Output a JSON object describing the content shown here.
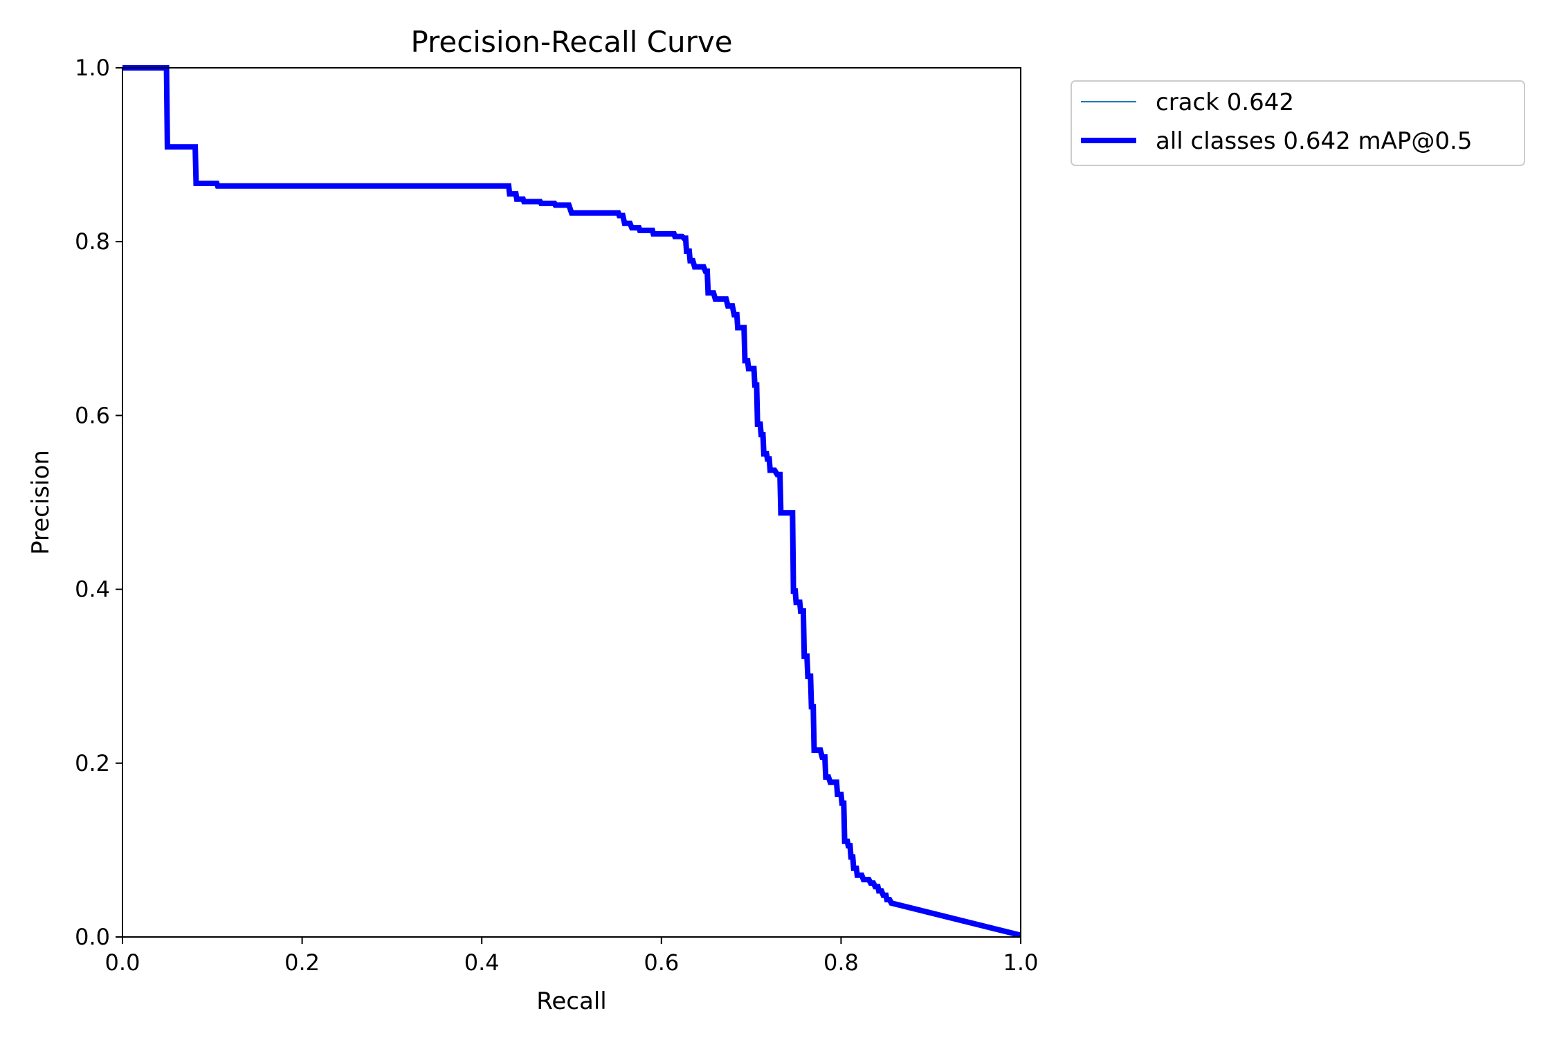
{
  "chart_data": {
    "type": "line",
    "title": "Precision-Recall Curve",
    "xlabel": "Recall",
    "ylabel": "Precision",
    "xlim": [
      0,
      1
    ],
    "ylim": [
      0,
      1
    ],
    "xticks": [
      "0.0",
      "0.2",
      "0.4",
      "0.6",
      "0.8",
      "1.0"
    ],
    "yticks": [
      "0.0",
      "0.2",
      "0.4",
      "0.6",
      "0.8",
      "1.0"
    ],
    "grid": false,
    "legend": {
      "placement": "outside-top-right",
      "entries": [
        {
          "label": "crack 0.642",
          "color": "#1f77b4",
          "style": "thin"
        },
        {
          "label": "all classes 0.642 mAP@0.5",
          "color": "#0000ff",
          "style": "thick"
        }
      ]
    },
    "series": [
      {
        "name": "all classes 0.642 mAP@0.5",
        "color": "#0000ff",
        "points": [
          [
            0.0,
            1.0
          ],
          [
            0.049,
            1.0
          ],
          [
            0.05,
            0.909
          ],
          [
            0.081,
            0.909
          ],
          [
            0.082,
            0.867
          ],
          [
            0.105,
            0.867
          ],
          [
            0.106,
            0.864
          ],
          [
            0.43,
            0.864
          ],
          [
            0.431,
            0.855
          ],
          [
            0.438,
            0.855
          ],
          [
            0.439,
            0.849
          ],
          [
            0.446,
            0.849
          ],
          [
            0.447,
            0.846
          ],
          [
            0.465,
            0.846
          ],
          [
            0.466,
            0.844
          ],
          [
            0.481,
            0.844
          ],
          [
            0.482,
            0.842
          ],
          [
            0.497,
            0.842
          ],
          [
            0.5,
            0.833
          ],
          [
            0.552,
            0.833
          ],
          [
            0.553,
            0.83
          ],
          [
            0.557,
            0.83
          ],
          [
            0.559,
            0.821
          ],
          [
            0.565,
            0.821
          ],
          [
            0.567,
            0.816
          ],
          [
            0.575,
            0.816
          ],
          [
            0.576,
            0.813
          ],
          [
            0.59,
            0.813
          ],
          [
            0.591,
            0.809
          ],
          [
            0.614,
            0.809
          ],
          [
            0.615,
            0.806
          ],
          [
            0.623,
            0.806
          ],
          [
            0.625,
            0.804
          ],
          [
            0.627,
            0.804
          ],
          [
            0.628,
            0.789
          ],
          [
            0.631,
            0.789
          ],
          [
            0.632,
            0.778
          ],
          [
            0.635,
            0.778
          ],
          [
            0.637,
            0.771
          ],
          [
            0.647,
            0.771
          ],
          [
            0.649,
            0.766
          ],
          [
            0.651,
            0.766
          ],
          [
            0.652,
            0.741
          ],
          [
            0.658,
            0.741
          ],
          [
            0.66,
            0.734
          ],
          [
            0.672,
            0.734
          ],
          [
            0.674,
            0.726
          ],
          [
            0.679,
            0.726
          ],
          [
            0.681,
            0.716
          ],
          [
            0.684,
            0.716
          ],
          [
            0.685,
            0.701
          ],
          [
            0.692,
            0.701
          ],
          [
            0.693,
            0.663
          ],
          [
            0.696,
            0.663
          ],
          [
            0.697,
            0.654
          ],
          [
            0.703,
            0.654
          ],
          [
            0.704,
            0.635
          ],
          [
            0.706,
            0.635
          ],
          [
            0.707,
            0.59
          ],
          [
            0.71,
            0.59
          ],
          [
            0.711,
            0.578
          ],
          [
            0.713,
            0.578
          ],
          [
            0.714,
            0.556
          ],
          [
            0.717,
            0.556
          ],
          [
            0.718,
            0.55
          ],
          [
            0.72,
            0.55
          ],
          [
            0.721,
            0.537
          ],
          [
            0.726,
            0.537
          ],
          [
            0.729,
            0.532
          ],
          [
            0.732,
            0.532
          ],
          [
            0.733,
            0.488
          ],
          [
            0.746,
            0.488
          ],
          [
            0.747,
            0.398
          ],
          [
            0.749,
            0.398
          ],
          [
            0.75,
            0.385
          ],
          [
            0.754,
            0.385
          ],
          [
            0.755,
            0.375
          ],
          [
            0.758,
            0.375
          ],
          [
            0.759,
            0.323
          ],
          [
            0.762,
            0.323
          ],
          [
            0.763,
            0.3
          ],
          [
            0.766,
            0.3
          ],
          [
            0.767,
            0.265
          ],
          [
            0.769,
            0.265
          ],
          [
            0.77,
            0.215
          ],
          [
            0.777,
            0.215
          ],
          [
            0.779,
            0.207
          ],
          [
            0.782,
            0.207
          ],
          [
            0.783,
            0.184
          ],
          [
            0.786,
            0.184
          ],
          [
            0.788,
            0.178
          ],
          [
            0.795,
            0.178
          ],
          [
            0.796,
            0.164
          ],
          [
            0.8,
            0.164
          ],
          [
            0.801,
            0.154
          ],
          [
            0.803,
            0.154
          ],
          [
            0.804,
            0.11
          ],
          [
            0.807,
            0.11
          ],
          [
            0.808,
            0.105
          ],
          [
            0.81,
            0.105
          ],
          [
            0.811,
            0.092
          ],
          [
            0.813,
            0.092
          ],
          [
            0.814,
            0.079
          ],
          [
            0.817,
            0.079
          ],
          [
            0.818,
            0.071
          ],
          [
            0.823,
            0.071
          ],
          [
            0.825,
            0.066
          ],
          [
            0.831,
            0.066
          ],
          [
            0.833,
            0.062
          ],
          [
            0.836,
            0.062
          ],
          [
            0.838,
            0.058
          ],
          [
            0.841,
            0.058
          ],
          [
            0.842,
            0.053
          ],
          [
            0.845,
            0.053
          ],
          [
            0.847,
            0.048
          ],
          [
            0.85,
            0.048
          ],
          [
            0.851,
            0.043
          ],
          [
            0.854,
            0.043
          ],
          [
            0.856,
            0.039
          ],
          [
            1.0,
            0.002
          ]
        ]
      }
    ]
  }
}
